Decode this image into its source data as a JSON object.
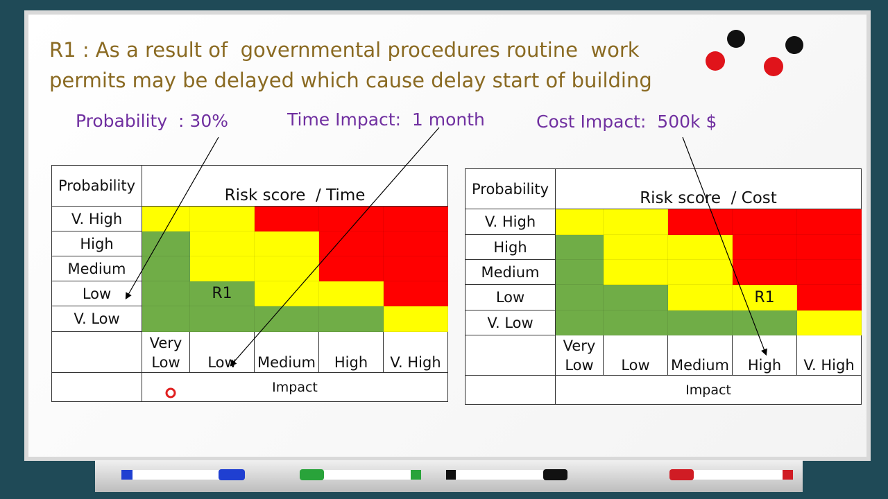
{
  "title": [
    "R1 : As a result of  governmental procedures routine  work",
    "permits may be delayed which cause delay start of building"
  ],
  "annotations": [
    "Probability  : 30%",
    "Time Impact:  1 month",
    "Cost Impact:  500k $"
  ],
  "matrices": [
    {
      "corner": "Probability",
      "title": "Risk score  / Time",
      "axis": "Impact",
      "columns": [
        "Very Low",
        "Low",
        "Medium",
        "High",
        "V. High"
      ],
      "rows": [
        {
          "label": "V. High",
          "cells": [
            {
              "color": "#ffff00"
            },
            {
              "color": "#ffff00"
            },
            {
              "color": "#ff0000"
            },
            {
              "color": "#ff0000"
            },
            {
              "color": "#ff0000"
            }
          ]
        },
        {
          "label": "High",
          "cells": [
            {
              "color": "#70ad47"
            },
            {
              "color": "#ffff00"
            },
            {
              "color": "#ffff00"
            },
            {
              "color": "#ff0000"
            },
            {
              "color": "#ff0000"
            }
          ]
        },
        {
          "label": "Medium",
          "cells": [
            {
              "color": "#70ad47"
            },
            {
              "color": "#ffff00"
            },
            {
              "color": "#ffff00"
            },
            {
              "color": "#ff0000"
            },
            {
              "color": "#ff0000"
            }
          ]
        },
        {
          "label": "Low",
          "cells": [
            {
              "color": "#70ad47"
            },
            {
              "color": "#70ad47",
              "label": "R1"
            },
            {
              "color": "#ffff00"
            },
            {
              "color": "#ffff00"
            },
            {
              "color": "#ff0000"
            }
          ]
        },
        {
          "label": "V. Low",
          "cells": [
            {
              "color": "#70ad47"
            },
            {
              "color": "#70ad47"
            },
            {
              "color": "#70ad47"
            },
            {
              "color": "#70ad47"
            },
            {
              "color": "#ffff00"
            }
          ]
        }
      ]
    },
    {
      "corner": "Probability",
      "title": "Risk score  / Cost",
      "axis": "Impact",
      "columns": [
        "Very Low",
        "Low",
        "Medium",
        "High",
        "V. High"
      ],
      "rows": [
        {
          "label": "V. High",
          "cells": [
            {
              "color": "#ffff00"
            },
            {
              "color": "#ffff00"
            },
            {
              "color": "#ff0000"
            },
            {
              "color": "#ff0000"
            },
            {
              "color": "#ff0000"
            }
          ]
        },
        {
          "label": "High",
          "cells": [
            {
              "color": "#70ad47"
            },
            {
              "color": "#ffff00"
            },
            {
              "color": "#ffff00"
            },
            {
              "color": "#ff0000"
            },
            {
              "color": "#ff0000"
            }
          ]
        },
        {
          "label": "Medium",
          "cells": [
            {
              "color": "#70ad47"
            },
            {
              "color": "#ffff00"
            },
            {
              "color": "#ffff00"
            },
            {
              "color": "#ff0000"
            },
            {
              "color": "#ff0000"
            }
          ]
        },
        {
          "label": "Low",
          "cells": [
            {
              "color": "#70ad47"
            },
            {
              "color": "#70ad47"
            },
            {
              "color": "#ffff00"
            },
            {
              "color": "#ffff00",
              "label": "R1"
            },
            {
              "color": "#ff0000"
            }
          ]
        },
        {
          "label": "V. Low",
          "cells": [
            {
              "color": "#70ad47"
            },
            {
              "color": "#70ad47"
            },
            {
              "color": "#70ad47"
            },
            {
              "color": "#70ad47"
            },
            {
              "color": "#ffff00"
            }
          ]
        }
      ]
    }
  ]
}
